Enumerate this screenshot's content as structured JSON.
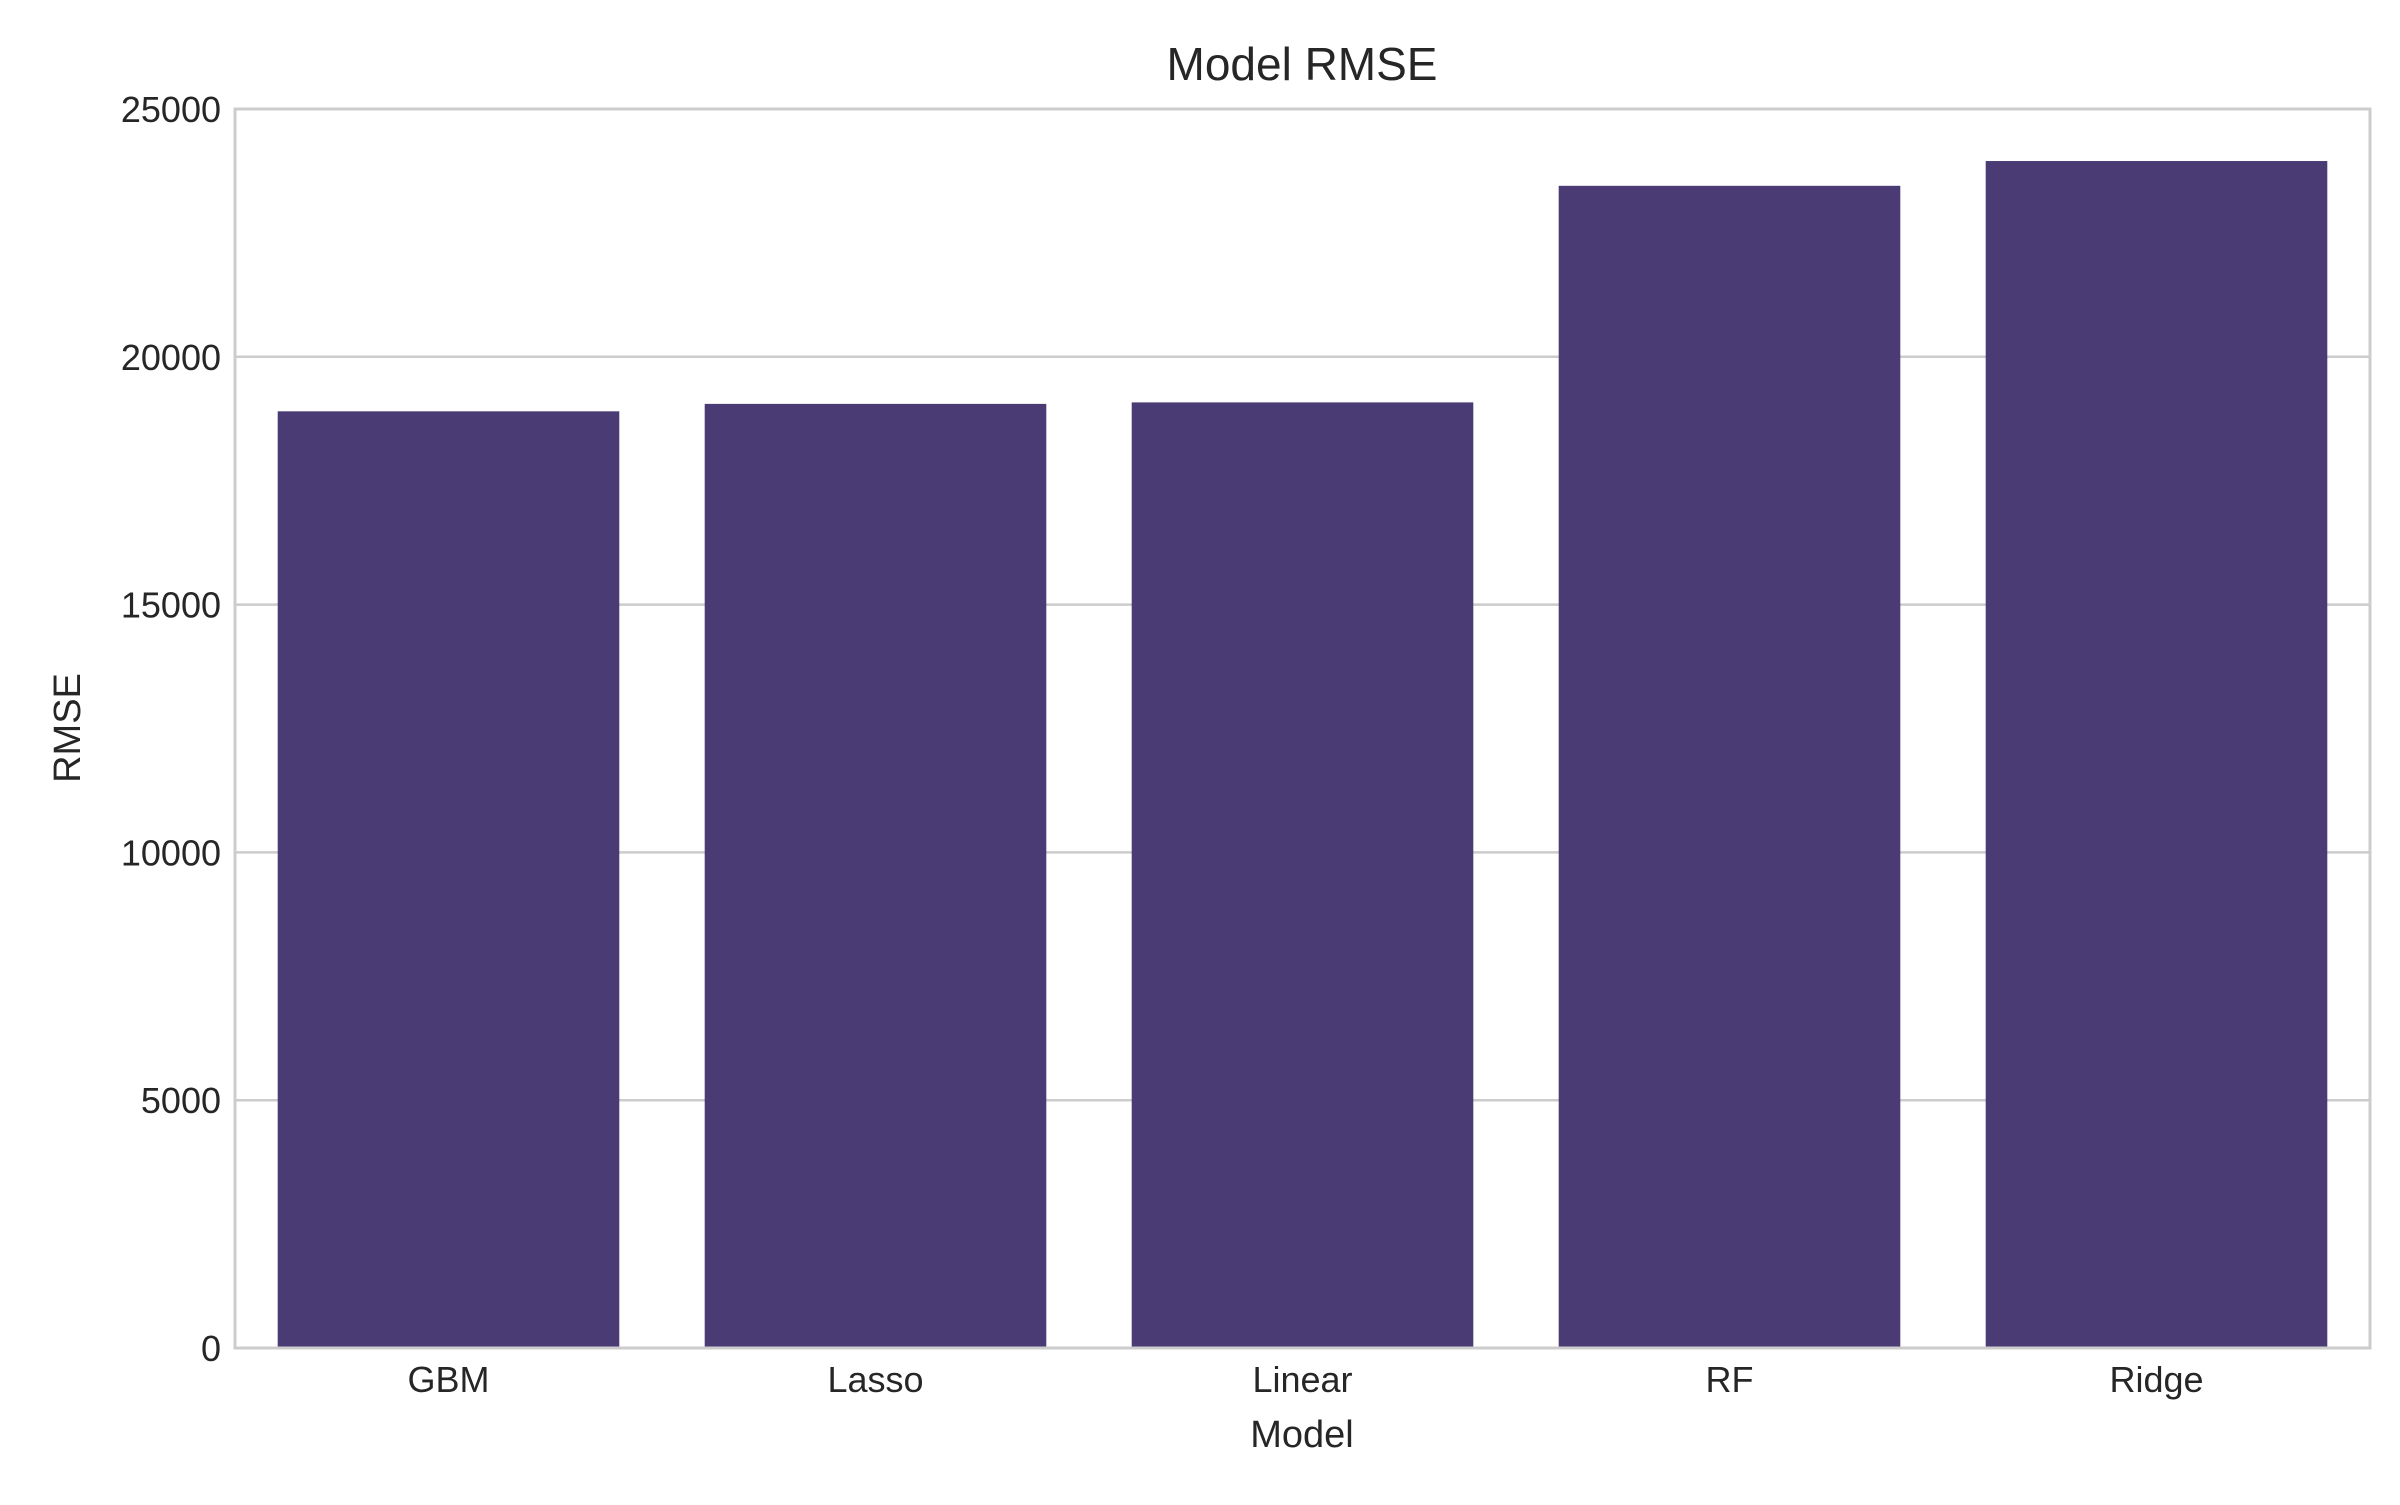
{
  "chart_data": {
    "type": "bar",
    "title": "Model RMSE",
    "xlabel": "Model",
    "ylabel": "RMSE",
    "categories": [
      "GBM",
      "Lasso",
      "Linear",
      "RF",
      "Ridge"
    ],
    "values": [
      18900,
      19050,
      19080,
      23450,
      23950
    ],
    "ylim": [
      0,
      25000
    ],
    "yticks": [
      0,
      5000,
      10000,
      15000,
      20000,
      25000
    ],
    "ytick_labels": [
      "0",
      "5000",
      "10000",
      "15000",
      "20000",
      "25000"
    ],
    "grid": "horizontal",
    "legend": "none",
    "colors": {
      "bar": "#4a3b74",
      "grid": "#cccccc",
      "frame": "#cccccc",
      "text": "#262626",
      "background": "#ffffff"
    }
  }
}
